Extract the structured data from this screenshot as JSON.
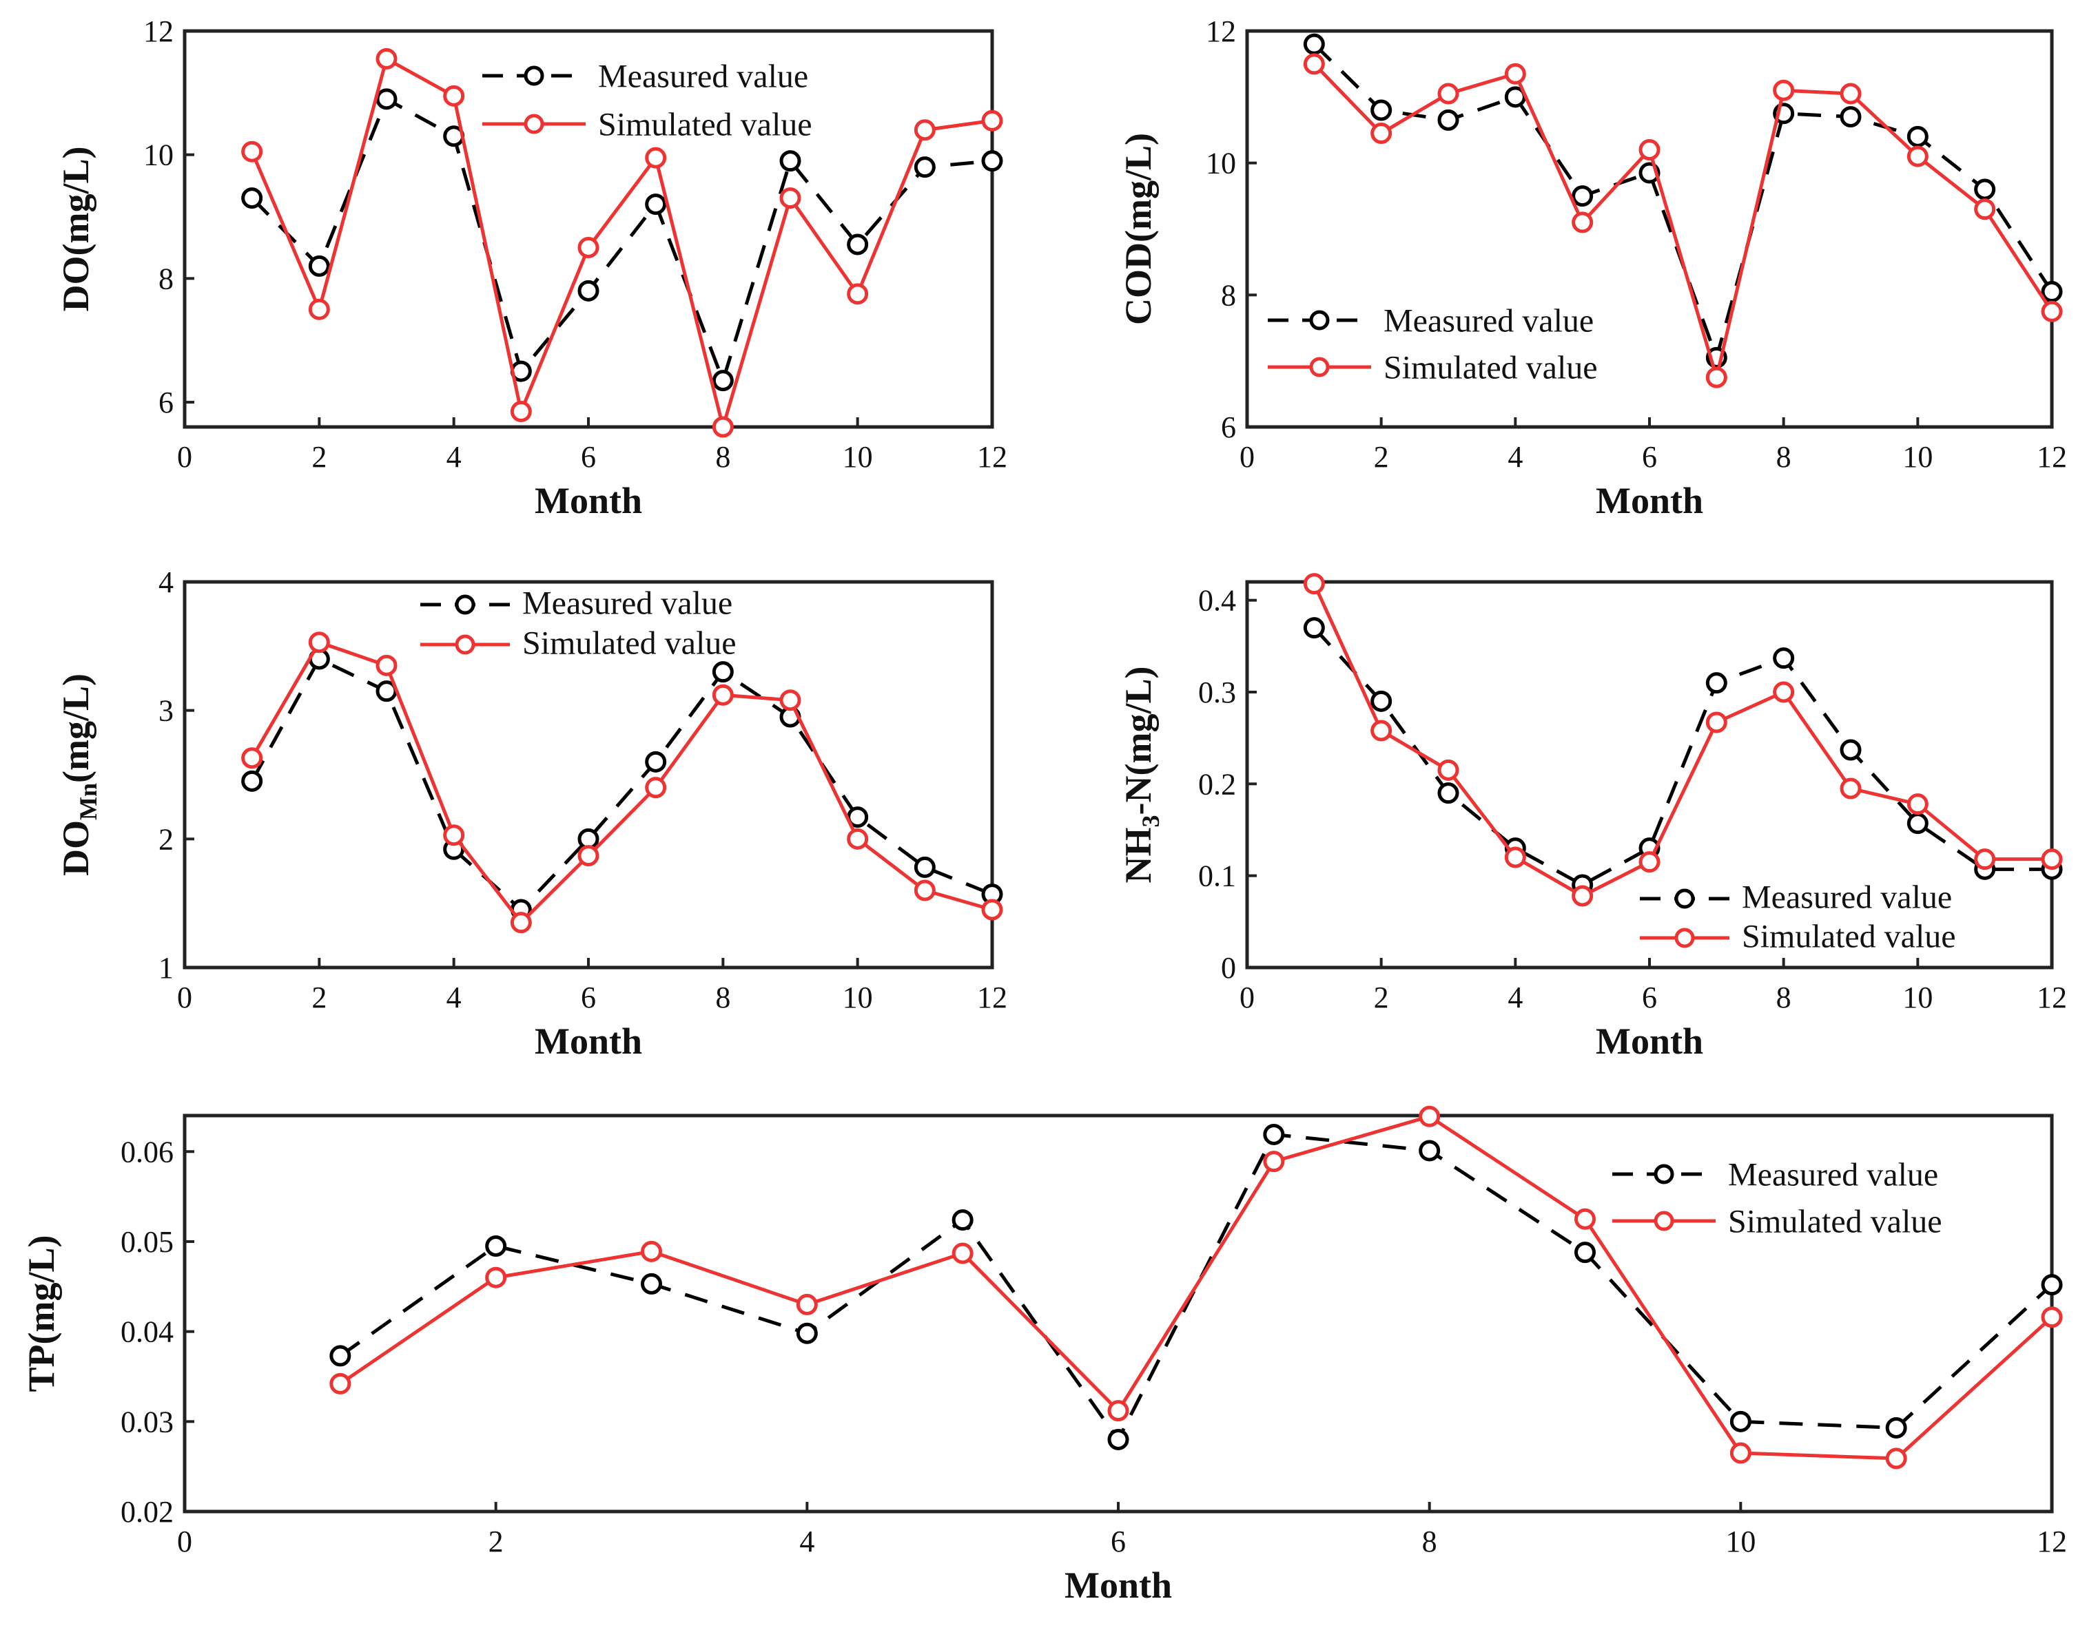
{
  "chart_data": [
    {
      "type": "line",
      "xlabel": "Month",
      "ylabel": "DO(mg/L)",
      "xlim": [
        0,
        12
      ],
      "ylim": [
        5.6,
        12
      ],
      "xticks": [
        "0",
        "2",
        "4",
        "6",
        "8",
        "10",
        "12"
      ],
      "yticks": [
        "6",
        "8",
        "10",
        "12"
      ],
      "x": [
        1,
        2,
        3,
        4,
        5,
        6,
        7,
        8,
        9,
        10,
        11,
        12
      ],
      "legend_position": "top-center",
      "series": [
        {
          "name": "Measured value",
          "color": "#000000",
          "style": "dashed",
          "values": [
            9.3,
            8.2,
            10.9,
            10.3,
            6.5,
            7.8,
            9.2,
            6.35,
            9.9,
            8.55,
            9.8,
            9.9
          ]
        },
        {
          "name": "Simulated value",
          "color": "#ee3333",
          "style": "solid",
          "values": [
            10.05,
            7.5,
            11.55,
            10.95,
            5.85,
            8.5,
            9.95,
            5.6,
            9.3,
            7.75,
            10.4,
            10.55
          ]
        }
      ]
    },
    {
      "type": "line",
      "xlabel": "Month",
      "ylabel": "COD(mg/L)",
      "xlim": [
        0,
        12
      ],
      "ylim": [
        6,
        12
      ],
      "xticks": [
        "0",
        "2",
        "4",
        "6",
        "8",
        "10",
        "12"
      ],
      "yticks": [
        "6",
        "8",
        "10",
        "12"
      ],
      "x": [
        1,
        2,
        3,
        4,
        5,
        6,
        7,
        8,
        9,
        10,
        11,
        12
      ],
      "legend_position": "bottom-left",
      "series": [
        {
          "name": "Measured value",
          "color": "#000000",
          "style": "dashed",
          "values": [
            11.8,
            10.8,
            10.65,
            11.0,
            9.5,
            9.85,
            7.05,
            10.75,
            10.7,
            10.4,
            9.6,
            8.05
          ]
        },
        {
          "name": "Simulated value",
          "color": "#ee3333",
          "style": "solid",
          "values": [
            11.5,
            10.45,
            11.05,
            11.35,
            9.1,
            10.2,
            6.75,
            11.1,
            11.05,
            10.1,
            9.3,
            7.75
          ]
        }
      ]
    },
    {
      "type": "line",
      "xlabel": "Month",
      "ylabel": "DOMn(mg/L)",
      "ylabel_parts": {
        "main": "DO",
        "sub": "Mn",
        "rest": "(mg/L)"
      },
      "xlim": [
        0,
        12
      ],
      "ylim": [
        1,
        4
      ],
      "xticks": [
        "0",
        "2",
        "4",
        "6",
        "8",
        "10",
        "12"
      ],
      "yticks": [
        "1",
        "2",
        "3",
        "4"
      ],
      "x": [
        1,
        2,
        3,
        4,
        5,
        6,
        7,
        8,
        9,
        10,
        11,
        12
      ],
      "legend_position": "top-center",
      "series": [
        {
          "name": "Measured value",
          "color": "#000000",
          "style": "dashed",
          "values": [
            2.45,
            3.4,
            3.15,
            1.92,
            1.45,
            2.0,
            2.6,
            3.3,
            2.95,
            2.17,
            1.78,
            1.57
          ]
        },
        {
          "name": "Simulated value",
          "color": "#ee3333",
          "style": "solid",
          "values": [
            2.63,
            3.53,
            3.35,
            2.03,
            1.35,
            1.87,
            2.4,
            3.12,
            3.08,
            2.0,
            1.6,
            1.45
          ]
        }
      ]
    },
    {
      "type": "line",
      "xlabel": "Month",
      "ylabel": "NH3-N(mg/L)",
      "ylabel_parts": {
        "main": "NH",
        "sub": "3",
        "rest": "-N(mg/L)"
      },
      "xlim": [
        0,
        12
      ],
      "ylim": [
        0,
        0.42
      ],
      "xticks": [
        "0",
        "2",
        "4",
        "6",
        "8",
        "10",
        "12"
      ],
      "yticks": [
        "0",
        "0.1",
        "0.2",
        "0.3",
        "0.4"
      ],
      "x": [
        1,
        2,
        3,
        4,
        5,
        6,
        7,
        8,
        9,
        10,
        11,
        12
      ],
      "legend_position": "bottom-right",
      "series": [
        {
          "name": "Measured value",
          "color": "#000000",
          "style": "dashed",
          "values": [
            0.37,
            0.29,
            0.19,
            0.13,
            0.09,
            0.13,
            0.31,
            0.337,
            0.237,
            0.157,
            0.107,
            0.107
          ]
        },
        {
          "name": "Simulated value",
          "color": "#ee3333",
          "style": "solid",
          "values": [
            0.418,
            0.258,
            0.215,
            0.12,
            0.078,
            0.115,
            0.267,
            0.3,
            0.195,
            0.178,
            0.118,
            0.118
          ]
        }
      ]
    },
    {
      "type": "line",
      "xlabel": "Month",
      "ylabel": "TP(mg/L)",
      "xlim": [
        0,
        12
      ],
      "ylim": [
        0.02,
        0.064
      ],
      "xticks": [
        "0",
        "2",
        "4",
        "6",
        "8",
        "10",
        "12"
      ],
      "yticks": [
        "0.02",
        "0.03",
        "0.04",
        "0.05",
        "0.06"
      ],
      "x": [
        1,
        2,
        3,
        4,
        5,
        6,
        7,
        8,
        9,
        10,
        11,
        12
      ],
      "legend_position": "top-right",
      "series": [
        {
          "name": "Measured value",
          "color": "#000000",
          "style": "dashed",
          "values": [
            0.0373,
            0.0495,
            0.0453,
            0.0398,
            0.0524,
            0.028,
            0.0619,
            0.0601,
            0.0488,
            0.03,
            0.0293,
            0.0452
          ]
        },
        {
          "name": "Simulated value",
          "color": "#ee3333",
          "style": "solid",
          "values": [
            0.0342,
            0.046,
            0.0489,
            0.043,
            0.0487,
            0.0312,
            0.0589,
            0.0639,
            0.0525,
            0.0265,
            0.0259,
            0.0416
          ]
        }
      ]
    }
  ]
}
